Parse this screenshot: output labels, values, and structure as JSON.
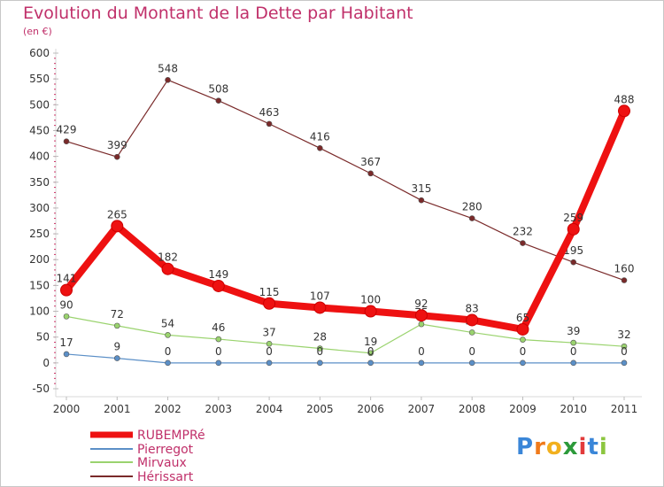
{
  "title": "Evolution du Montant de la Dette par Habitant",
  "subtitle": "(en €)",
  "brand": {
    "text": "Proxiti",
    "letters": [
      "P",
      "r",
      "o",
      "x",
      "i",
      "t",
      "i"
    ],
    "colors": [
      "#3a86d8",
      "#f07a1a",
      "#f2b01e",
      "#2c9a3a",
      "#e23b3b",
      "#3a86d8",
      "#8cc63f"
    ]
  },
  "chart_data": {
    "type": "line",
    "x": [
      "2000",
      "2001",
      "2002",
      "2003",
      "2004",
      "2005",
      "2006",
      "2007",
      "2008",
      "2009",
      "2010",
      "2011"
    ],
    "ylim": [
      -50,
      600
    ],
    "yticks": [
      "-50",
      "0",
      "50",
      "100",
      "150",
      "200",
      "250",
      "300",
      "350",
      "400",
      "450",
      "500",
      "550",
      "600"
    ],
    "grid": false,
    "legend": "bottom-left",
    "series": [
      {
        "name": "Hérissart",
        "color": "#7a2a2a",
        "values": [
          429,
          399,
          548,
          508,
          463,
          416,
          367,
          315,
          280,
          232,
          195,
          160
        ],
        "labels": [
          "429",
          "399",
          "548",
          "508",
          "463",
          "416",
          "367",
          "315",
          "280",
          "232",
          "195",
          "160"
        ]
      },
      {
        "name": "Mirvaux",
        "color": "#9ad36e",
        "values": [
          90,
          72,
          54,
          46,
          37,
          28,
          19,
          75,
          59,
          45,
          39,
          32
        ],
        "labels": [
          "90",
          "72",
          "54",
          "46",
          "37",
          "28",
          "19",
          "75",
          "59",
          "45",
          "39",
          "32"
        ]
      },
      {
        "name": "Pierregot",
        "color": "#5b8fc7",
        "values": [
          17,
          9,
          0,
          0,
          0,
          0,
          0,
          0,
          0,
          0,
          0,
          0
        ],
        "labels": [
          "17",
          "9",
          "0",
          "0",
          "0",
          "0",
          "0",
          "0",
          "0",
          "0",
          "0",
          "0"
        ]
      },
      {
        "name": "RUBEMPRé",
        "color": "#ee1111",
        "values": [
          141,
          265,
          182,
          149,
          115,
          107,
          100,
          92,
          83,
          65,
          259,
          488
        ],
        "labels": [
          "141",
          "265",
          "182",
          "149",
          "115",
          "107",
          "100",
          "92",
          "83",
          "65",
          "259",
          "488"
        ]
      }
    ],
    "legend_entries": [
      "RUBEMPRé",
      "Pierregot",
      "Mirvaux",
      "Hérissart"
    ]
  }
}
